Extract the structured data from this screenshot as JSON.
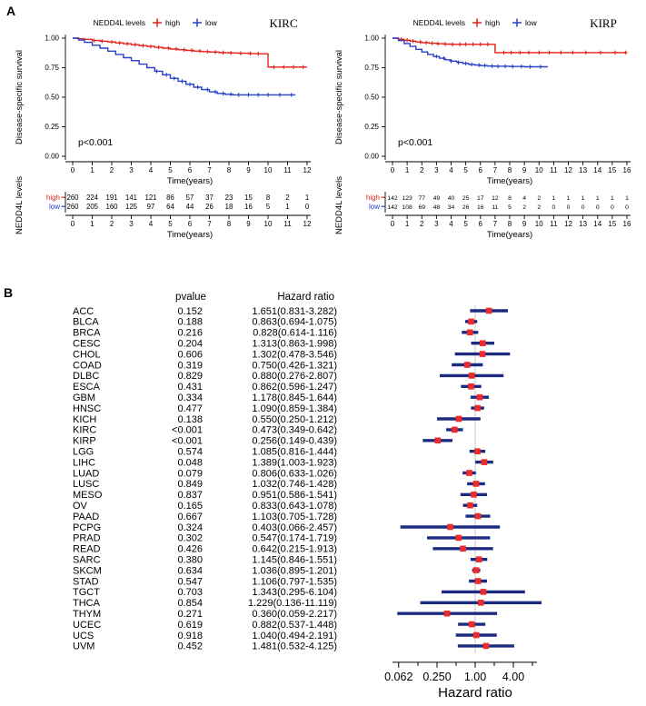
{
  "panels": {
    "a_label": "A",
    "b_label": "B"
  },
  "chart_data": [
    {
      "id": "km-kirc",
      "type": "line",
      "subtype": "kaplan-meier",
      "title": "KIRC",
      "legend_title": "NEDD4L levels",
      "xlabel": "Time(years)",
      "ylabel": "Disease-specific survival",
      "pvalue_text": "p<0.001",
      "xlim": [
        0,
        12
      ],
      "ylim": [
        0,
        1
      ],
      "xticks": [
        0,
        1,
        2,
        3,
        4,
        5,
        6,
        7,
        8,
        9,
        10,
        11,
        12
      ],
      "ytick_labels": [
        "0.00",
        "0.25",
        "0.50",
        "0.75",
        "1.00"
      ],
      "series": [
        {
          "name": "high",
          "color": "#e2231a",
          "points": [
            [
              0,
              1.0
            ],
            [
              0.3,
              0.995
            ],
            [
              0.6,
              0.99
            ],
            [
              1,
              0.98
            ],
            [
              1.4,
              0.975
            ],
            [
              1.8,
              0.968
            ],
            [
              2.2,
              0.96
            ],
            [
              2.6,
              0.953
            ],
            [
              3,
              0.945
            ],
            [
              3.4,
              0.937
            ],
            [
              3.8,
              0.93
            ],
            [
              4.2,
              0.922
            ],
            [
              4.6,
              0.915
            ],
            [
              5,
              0.908
            ],
            [
              5.4,
              0.902
            ],
            [
              5.8,
              0.896
            ],
            [
              6.2,
              0.891
            ],
            [
              6.6,
              0.886
            ],
            [
              7,
              0.882
            ],
            [
              7.5,
              0.878
            ],
            [
              8,
              0.875
            ],
            [
              8.5,
              0.872
            ],
            [
              9,
              0.87
            ],
            [
              9.5,
              0.868
            ],
            [
              9.9,
              0.868
            ],
            [
              10,
              0.755
            ],
            [
              10.5,
              0.755
            ],
            [
              11,
              0.755
            ],
            [
              12,
              0.755
            ]
          ],
          "censors": [
            1.1,
            1.5,
            2.0,
            2.4,
            2.8,
            3.2,
            3.6,
            4.0,
            4.4,
            4.9,
            5.3,
            5.7,
            6.1,
            6.5,
            6.9,
            7.3,
            7.7,
            8.1,
            8.6,
            9.1,
            9.5,
            10.3,
            10.8,
            11.3,
            11.8
          ]
        },
        {
          "name": "low",
          "color": "#2742c8",
          "points": [
            [
              0,
              1.0
            ],
            [
              0.3,
              0.985
            ],
            [
              0.6,
              0.965
            ],
            [
              1,
              0.94
            ],
            [
              1.4,
              0.915
            ],
            [
              1.8,
              0.89
            ],
            [
              2.2,
              0.862
            ],
            [
              2.6,
              0.835
            ],
            [
              3,
              0.81
            ],
            [
              3.4,
              0.78
            ],
            [
              3.8,
              0.75
            ],
            [
              4.2,
              0.72
            ],
            [
              4.6,
              0.69
            ],
            [
              5,
              0.66
            ],
            [
              5.4,
              0.635
            ],
            [
              5.8,
              0.61
            ],
            [
              6.2,
              0.585
            ],
            [
              6.6,
              0.565
            ],
            [
              7,
              0.545
            ],
            [
              7.4,
              0.532
            ],
            [
              7.8,
              0.525
            ],
            [
              8.2,
              0.52
            ],
            [
              9,
              0.52
            ],
            [
              10,
              0.52
            ],
            [
              11,
              0.52
            ],
            [
              11.4,
              0.52
            ]
          ],
          "censors": [
            4.3,
            4.8,
            5.2,
            5.6,
            6.0,
            6.4,
            6.9,
            7.3,
            7.7,
            8.1,
            8.5,
            9.0,
            9.5,
            10.0,
            10.6,
            11.2
          ]
        }
      ],
      "risk_table": {
        "ylabel": "NEDD4L levels",
        "xlabel": "Time(years)",
        "rows": [
          {
            "name": "high",
            "color": "#e2231a",
            "counts": [
              260,
              224,
              191,
              141,
              121,
              86,
              57,
              37,
              23,
              15,
              8,
              2,
              1
            ]
          },
          {
            "name": "low",
            "color": "#2742c8",
            "counts": [
              260,
              205,
              160,
              125,
              97,
              64,
              44,
              26,
              18,
              16,
              5,
              1,
              0
            ]
          }
        ]
      }
    },
    {
      "id": "km-kirp",
      "type": "line",
      "subtype": "kaplan-meier",
      "title": "KIRP",
      "legend_title": "NEDD4L levels",
      "xlabel": "Time(years)",
      "ylabel": "Disease-specific survival",
      "pvalue_text": "p<0.001",
      "xlim": [
        0,
        16
      ],
      "ylim": [
        0,
        1
      ],
      "xticks": [
        0,
        1,
        2,
        3,
        4,
        5,
        6,
        7,
        8,
        9,
        10,
        11,
        12,
        13,
        14,
        15,
        16
      ],
      "ytick_labels": [
        "0.00",
        "0.25",
        "0.50",
        "0.75",
        "1.00"
      ],
      "series": [
        {
          "name": "high",
          "color": "#e2231a",
          "points": [
            [
              0,
              1.0
            ],
            [
              0.4,
              0.99
            ],
            [
              0.8,
              0.982
            ],
            [
              1.2,
              0.975
            ],
            [
              1.6,
              0.968
            ],
            [
              2,
              0.962
            ],
            [
              2.5,
              0.957
            ],
            [
              3,
              0.953
            ],
            [
              3.5,
              0.95
            ],
            [
              4,
              0.948
            ],
            [
              5,
              0.948
            ],
            [
              6,
              0.948
            ],
            [
              6.9,
              0.948
            ],
            [
              7,
              0.878
            ],
            [
              8,
              0.878
            ],
            [
              10,
              0.878
            ],
            [
              12,
              0.878
            ],
            [
              14,
              0.878
            ],
            [
              16,
              0.878
            ]
          ],
          "censors": [
            0.6,
            1.0,
            1.4,
            1.9,
            2.3,
            2.7,
            3.1,
            3.6,
            4.1,
            4.6,
            5.0,
            5.5,
            6.0,
            6.5,
            7.6,
            8.1,
            8.7,
            9.3,
            10.0,
            10.7,
            11.5,
            12.3,
            13.2,
            14.2,
            15.2,
            15.9
          ]
        },
        {
          "name": "low",
          "color": "#2742c8",
          "points": [
            [
              0,
              1.0
            ],
            [
              0.4,
              0.98
            ],
            [
              0.8,
              0.955
            ],
            [
              1.2,
              0.93
            ],
            [
              1.6,
              0.905
            ],
            [
              2,
              0.883
            ],
            [
              2.4,
              0.862
            ],
            [
              2.8,
              0.845
            ],
            [
              3.2,
              0.83
            ],
            [
              3.6,
              0.817
            ],
            [
              4,
              0.805
            ],
            [
              4.4,
              0.795
            ],
            [
              4.8,
              0.786
            ],
            [
              5.2,
              0.778
            ],
            [
              5.6,
              0.772
            ],
            [
              6,
              0.768
            ],
            [
              6.5,
              0.764
            ],
            [
              7,
              0.762
            ],
            [
              8,
              0.76
            ],
            [
              9,
              0.758
            ],
            [
              10,
              0.758
            ],
            [
              10.6,
              0.758
            ]
          ],
          "censors": [
            3.0,
            3.5,
            4.0,
            4.5,
            5.0,
            5.4,
            5.9,
            6.3,
            6.8,
            7.2,
            7.7,
            8.2,
            8.8,
            9.4,
            10.1
          ]
        }
      ],
      "risk_table": {
        "ylabel": "NEDD4L levels",
        "xlabel": "Time(years)",
        "rows": [
          {
            "name": "high",
            "color": "#e2231a",
            "counts": [
              142,
              123,
              77,
              49,
              40,
              25,
              17,
              12,
              8,
              4,
              2,
              1,
              1,
              1,
              1,
              1,
              1
            ]
          },
          {
            "name": "low",
            "color": "#2742c8",
            "counts": [
              142,
              108,
              69,
              48,
              34,
              26,
              16,
              11,
              5,
              2,
              2,
              0,
              0,
              0,
              0,
              0,
              0
            ]
          }
        ]
      }
    },
    {
      "id": "forest",
      "type": "scatter",
      "subtype": "forest",
      "col_headers": [
        "pvalue",
        "Hazard ratio"
      ],
      "xlabel": "Hazard ratio",
      "xticks_major": [
        0.062,
        0.25,
        1,
        4
      ],
      "xtick_labels": [
        "0.062",
        "0.250",
        "1.00",
        "4.00"
      ],
      "xticks_minor": [
        0.125,
        0.5,
        2,
        8
      ],
      "marker_color": "#ee2b2b",
      "ci_color": "#1c2b80",
      "reference_line": 1.0,
      "rows": [
        {
          "cancer": "ACC",
          "pvalue": "0.152",
          "hr_text": "1.651(0.831-3.282)",
          "hr": 1.651,
          "lo": 0.831,
          "hi": 3.282
        },
        {
          "cancer": "BLCA",
          "pvalue": "0.188",
          "hr_text": "0.863(0.694-1.075)",
          "hr": 0.863,
          "lo": 0.694,
          "hi": 1.075
        },
        {
          "cancer": "BRCA",
          "pvalue": "0.216",
          "hr_text": "0.828(0.614-1.116)",
          "hr": 0.828,
          "lo": 0.614,
          "hi": 1.116
        },
        {
          "cancer": "CESC",
          "pvalue": "0.204",
          "hr_text": "1.313(0.863-1.998)",
          "hr": 1.313,
          "lo": 0.863,
          "hi": 1.998
        },
        {
          "cancer": "CHOL",
          "pvalue": "0.606",
          "hr_text": "1.302(0.478-3.546)",
          "hr": 1.302,
          "lo": 0.478,
          "hi": 3.546
        },
        {
          "cancer": "COAD",
          "pvalue": "0.319",
          "hr_text": "0.750(0.426-1.321)",
          "hr": 0.75,
          "lo": 0.426,
          "hi": 1.321
        },
        {
          "cancer": "DLBC",
          "pvalue": "0.829",
          "hr_text": "0.880(0.276-2.807)",
          "hr": 0.88,
          "lo": 0.276,
          "hi": 2.807
        },
        {
          "cancer": "ESCA",
          "pvalue": "0.431",
          "hr_text": "0.862(0.596-1.247)",
          "hr": 0.862,
          "lo": 0.596,
          "hi": 1.247
        },
        {
          "cancer": "GBM",
          "pvalue": "0.334",
          "hr_text": "1.178(0.845-1.644)",
          "hr": 1.178,
          "lo": 0.845,
          "hi": 1.644
        },
        {
          "cancer": "HNSC",
          "pvalue": "0.477",
          "hr_text": "1.090(0.859-1.384)",
          "hr": 1.09,
          "lo": 0.859,
          "hi": 1.384
        },
        {
          "cancer": "KICH",
          "pvalue": "0.138",
          "hr_text": "0.550(0.250-1.212)",
          "hr": 0.55,
          "lo": 0.25,
          "hi": 1.212
        },
        {
          "cancer": "KIRC",
          "pvalue": "<0.001",
          "hr_text": "0.473(0.349-0.642)",
          "hr": 0.473,
          "lo": 0.349,
          "hi": 0.642
        },
        {
          "cancer": "KIRP",
          "pvalue": "<0.001",
          "hr_text": "0.256(0.149-0.439)",
          "hr": 0.256,
          "lo": 0.149,
          "hi": 0.439
        },
        {
          "cancer": "LGG",
          "pvalue": "0.574",
          "hr_text": "1.085(0.816-1.444)",
          "hr": 1.085,
          "lo": 0.816,
          "hi": 1.444
        },
        {
          "cancer": "LIHC",
          "pvalue": "0.048",
          "hr_text": "1.389(1.003-1.923)",
          "hr": 1.389,
          "lo": 1.003,
          "hi": 1.923
        },
        {
          "cancer": "LUAD",
          "pvalue": "0.079",
          "hr_text": "0.806(0.633-1.026)",
          "hr": 0.806,
          "lo": 0.633,
          "hi": 1.026
        },
        {
          "cancer": "LUSC",
          "pvalue": "0.849",
          "hr_text": "1.032(0.746-1.428)",
          "hr": 1.032,
          "lo": 0.746,
          "hi": 1.428
        },
        {
          "cancer": "MESO",
          "pvalue": "0.837",
          "hr_text": "0.951(0.586-1.541)",
          "hr": 0.951,
          "lo": 0.586,
          "hi": 1.541
        },
        {
          "cancer": "OV",
          "pvalue": "0.165",
          "hr_text": "0.833(0.643-1.078)",
          "hr": 0.833,
          "lo": 0.643,
          "hi": 1.078
        },
        {
          "cancer": "PAAD",
          "pvalue": "0.667",
          "hr_text": "1.103(0.705-1.728)",
          "hr": 1.103,
          "lo": 0.705,
          "hi": 1.728
        },
        {
          "cancer": "PCPG",
          "pvalue": "0.324",
          "hr_text": "0.403(0.066-2.457)",
          "hr": 0.403,
          "lo": 0.066,
          "hi": 2.457
        },
        {
          "cancer": "PRAD",
          "pvalue": "0.302",
          "hr_text": "0.547(0.174-1.719)",
          "hr": 0.547,
          "lo": 0.174,
          "hi": 1.719
        },
        {
          "cancer": "READ",
          "pvalue": "0.426",
          "hr_text": "0.642(0.215-1.913)",
          "hr": 0.642,
          "lo": 0.215,
          "hi": 1.913
        },
        {
          "cancer": "SARC",
          "pvalue": "0.380",
          "hr_text": "1.145(0.846-1.551)",
          "hr": 1.145,
          "lo": 0.846,
          "hi": 1.551
        },
        {
          "cancer": "SKCM",
          "pvalue": "0.634",
          "hr_text": "1.036(0.895-1.201)",
          "hr": 1.036,
          "lo": 0.895,
          "hi": 1.201
        },
        {
          "cancer": "STAD",
          "pvalue": "0.547",
          "hr_text": "1.106(0.797-1.535)",
          "hr": 1.106,
          "lo": 0.797,
          "hi": 1.535
        },
        {
          "cancer": "TGCT",
          "pvalue": "0.703",
          "hr_text": "1.343(0.295-6.104)",
          "hr": 1.343,
          "lo": 0.295,
          "hi": 6.104
        },
        {
          "cancer": "THCA",
          "pvalue": "0.854",
          "hr_text": "1.229(0.136-11.119)",
          "hr": 1.229,
          "lo": 0.136,
          "hi": 11.119
        },
        {
          "cancer": "THYM",
          "pvalue": "0.271",
          "hr_text": "0.360(0.059-2.217)",
          "hr": 0.36,
          "lo": 0.059,
          "hi": 2.217
        },
        {
          "cancer": "UCEC",
          "pvalue": "0.619",
          "hr_text": "0.882(0.537-1.448)",
          "hr": 0.882,
          "lo": 0.537,
          "hi": 1.448
        },
        {
          "cancer": "UCS",
          "pvalue": "0.918",
          "hr_text": "1.040(0.494-2.191)",
          "hr": 1.04,
          "lo": 0.494,
          "hi": 2.191
        },
        {
          "cancer": "UVM",
          "pvalue": "0.452",
          "hr_text": "1.481(0.532-4.125)",
          "hr": 1.481,
          "lo": 0.532,
          "hi": 4.125
        }
      ]
    }
  ]
}
